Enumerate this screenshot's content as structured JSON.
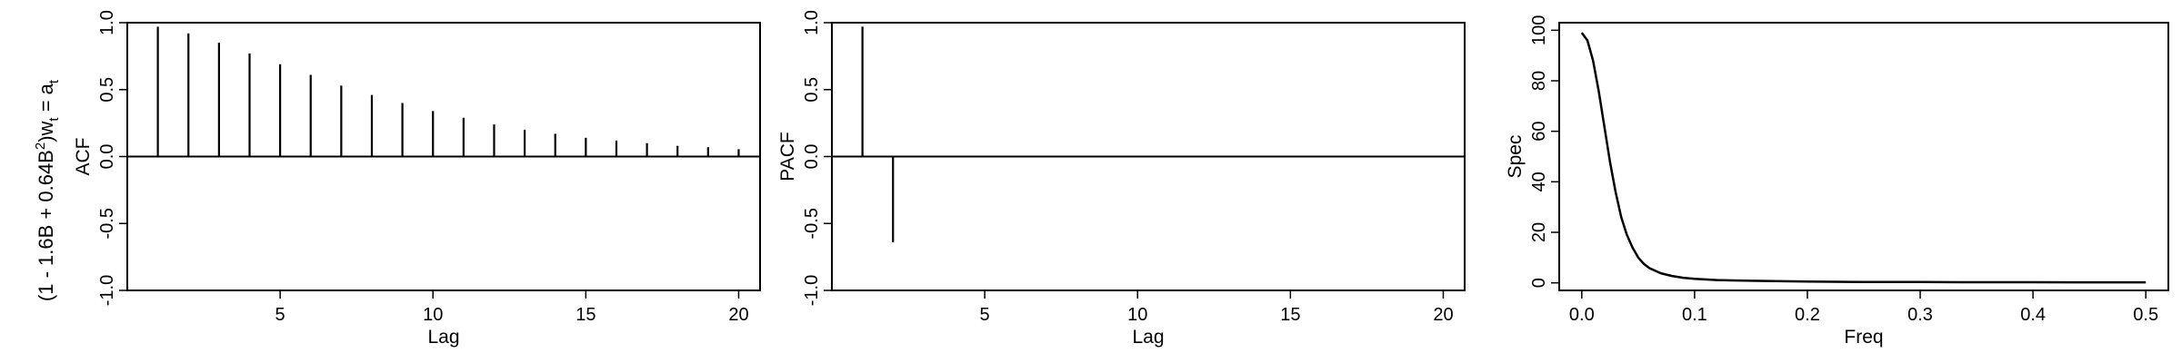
{
  "row_label": {
    "prefix": "(1 - 1.6B + 0.64B",
    "exp": "2",
    "mid": ")w",
    "sub": "t",
    "suffix": " = a",
    "sub2": "t"
  },
  "chart_data": [
    {
      "type": "bar",
      "style": "vertical-lines",
      "xlabel": "Lag",
      "ylabel": "ACF",
      "xlim": [
        0,
        20.7
      ],
      "ylim": [
        -1.0,
        1.0
      ],
      "xticks": [
        5,
        10,
        15,
        20
      ],
      "yticks": [
        -1.0,
        -0.5,
        0.0,
        0.5,
        1.0
      ],
      "yticklabels": [
        "-1.0",
        "-0.5",
        "0.0",
        "0.5",
        "1.0"
      ],
      "zero_line": true,
      "grid": false,
      "x": [
        1,
        2,
        3,
        4,
        5,
        6,
        7,
        8,
        9,
        10,
        11,
        12,
        13,
        14,
        15,
        16,
        17,
        18,
        19,
        20
      ],
      "values": [
        0.97,
        0.92,
        0.85,
        0.77,
        0.69,
        0.61,
        0.53,
        0.46,
        0.4,
        0.34,
        0.29,
        0.24,
        0.2,
        0.17,
        0.14,
        0.12,
        0.1,
        0.08,
        0.07,
        0.055
      ]
    },
    {
      "type": "bar",
      "style": "vertical-lines",
      "xlabel": "Lag",
      "ylabel": "PACF",
      "xlim": [
        0,
        20.7
      ],
      "ylim": [
        -1.0,
        1.0
      ],
      "xticks": [
        5,
        10,
        15,
        20
      ],
      "yticks": [
        -1.0,
        -0.5,
        0.0,
        0.5,
        1.0
      ],
      "yticklabels": [
        "-1.0",
        "-0.5",
        "0.0",
        "0.5",
        "1.0"
      ],
      "zero_line": true,
      "grid": false,
      "x": [
        1,
        2,
        3,
        4,
        5,
        6,
        7,
        8,
        9,
        10,
        11,
        12,
        13,
        14,
        15,
        16,
        17,
        18,
        19,
        20
      ],
      "values": [
        0.97,
        -0.64,
        0,
        0,
        0,
        0,
        0,
        0,
        0,
        0,
        0,
        0,
        0,
        0,
        0,
        0,
        0,
        0,
        0,
        0
      ]
    },
    {
      "type": "line",
      "xlabel": "Freq",
      "ylabel": "Spec",
      "xlim": [
        -0.02,
        0.52
      ],
      "ylim": [
        -3,
        103
      ],
      "xticks": [
        0.0,
        0.1,
        0.2,
        0.3,
        0.4,
        0.5
      ],
      "xticklabels": [
        "0.0",
        "0.1",
        "0.2",
        "0.3",
        "0.4",
        "0.5"
      ],
      "yticks": [
        0,
        20,
        40,
        60,
        80,
        100
      ],
      "yticklabels": [
        "0",
        "20",
        "40",
        "60",
        "80",
        "100"
      ],
      "grid": false,
      "x": [
        0.0,
        0.005,
        0.01,
        0.015,
        0.02,
        0.025,
        0.03,
        0.035,
        0.04,
        0.045,
        0.05,
        0.055,
        0.06,
        0.07,
        0.08,
        0.09,
        0.1,
        0.12,
        0.15,
        0.2,
        0.25,
        0.3,
        0.35,
        0.4,
        0.45,
        0.5
      ],
      "y": [
        99,
        96,
        88,
        76,
        62,
        48,
        36,
        26,
        19,
        14,
        10,
        7.5,
        5.8,
        3.8,
        2.7,
        2.0,
        1.6,
        1.1,
        0.8,
        0.5,
        0.35,
        0.3,
        0.25,
        0.22,
        0.2,
        0.2
      ]
    }
  ]
}
